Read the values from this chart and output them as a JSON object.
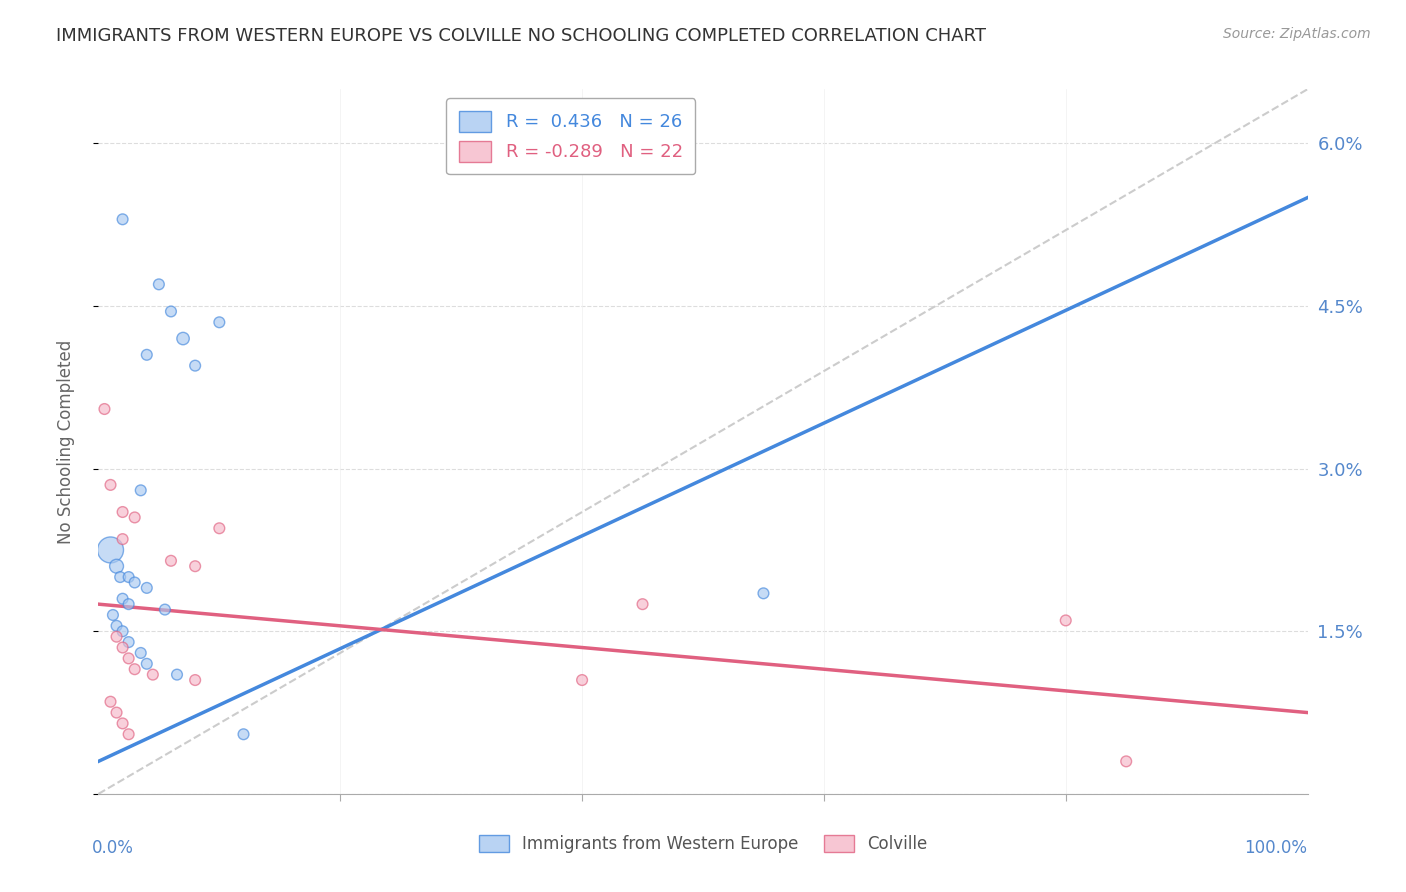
{
  "title": "IMMIGRANTS FROM WESTERN EUROPE VS COLVILLE NO SCHOOLING COMPLETED CORRELATION CHART",
  "source": "Source: ZipAtlas.com",
  "ylabel": "No Schooling Completed",
  "yticks": [
    0.0,
    1.5,
    3.0,
    4.5,
    6.0
  ],
  "ytick_labels": [
    "",
    "1.5%",
    "3.0%",
    "4.5%",
    "6.0%"
  ],
  "legend_blue_r": "R =  0.436",
  "legend_blue_n": "N = 26",
  "legend_pink_r": "R = -0.289",
  "legend_pink_n": "N = 22",
  "legend_label_blue": "Immigrants from Western Europe",
  "legend_label_pink": "Colville",
  "blue_color": "#a8c8f0",
  "pink_color": "#f5b8c8",
  "blue_line_color": "#4488dd",
  "pink_line_color": "#e06080",
  "dashed_line_color": "#cccccc",
  "title_color": "#333333",
  "axis_label_color": "#5588cc",
  "blue_scatter_x": [
    2.0,
    5.0,
    7.0,
    10.0,
    4.0,
    6.0,
    8.0,
    3.5,
    1.0,
    1.5,
    1.8,
    2.5,
    3.0,
    4.0,
    2.0,
    2.5,
    5.5,
    1.2,
    1.5,
    2.0,
    2.5,
    3.5,
    4.0,
    55.0,
    6.5,
    12.0
  ],
  "blue_scatter_y": [
    5.3,
    4.7,
    4.2,
    4.35,
    4.05,
    4.45,
    3.95,
    2.8,
    2.25,
    2.1,
    2.0,
    2.0,
    1.95,
    1.9,
    1.8,
    1.75,
    1.7,
    1.65,
    1.55,
    1.5,
    1.4,
    1.3,
    1.2,
    1.85,
    1.1,
    0.55
  ],
  "blue_scatter_size": [
    60,
    60,
    80,
    60,
    60,
    60,
    60,
    60,
    350,
    100,
    60,
    60,
    60,
    60,
    60,
    60,
    60,
    60,
    60,
    60,
    60,
    60,
    60,
    60,
    60,
    60
  ],
  "pink_scatter_x": [
    0.5,
    1.0,
    2.0,
    2.0,
    3.0,
    6.0,
    8.0,
    10.0,
    45.0,
    80.0,
    40.0,
    1.5,
    2.0,
    2.5,
    3.0,
    4.5,
    8.0,
    1.0,
    1.5,
    2.0,
    2.5,
    85.0
  ],
  "pink_scatter_y": [
    3.55,
    2.85,
    2.6,
    2.35,
    2.55,
    2.15,
    2.1,
    2.45,
    1.75,
    1.6,
    1.05,
    1.45,
    1.35,
    1.25,
    1.15,
    1.1,
    1.05,
    0.85,
    0.75,
    0.65,
    0.55,
    0.3
  ],
  "pink_scatter_size": [
    60,
    60,
    60,
    60,
    60,
    60,
    60,
    60,
    60,
    60,
    60,
    60,
    60,
    60,
    60,
    60,
    60,
    60,
    60,
    60,
    60,
    60
  ],
  "blue_trend_x0": 0,
  "blue_trend_x1": 100,
  "blue_trend_y0": 0.3,
  "blue_trend_y1": 5.5,
  "pink_trend_x0": 0,
  "pink_trend_x1": 100,
  "pink_trend_y0": 1.75,
  "pink_trend_y1": 0.75,
  "dashed_trend_x0": 0,
  "dashed_trend_x1": 100,
  "dashed_trend_y0": 0.0,
  "dashed_trend_y1": 6.5,
  "xlim": [
    0,
    100
  ],
  "ylim": [
    0,
    6.5
  ],
  "background_color": "#ffffff",
  "grid_color": "#dddddd"
}
